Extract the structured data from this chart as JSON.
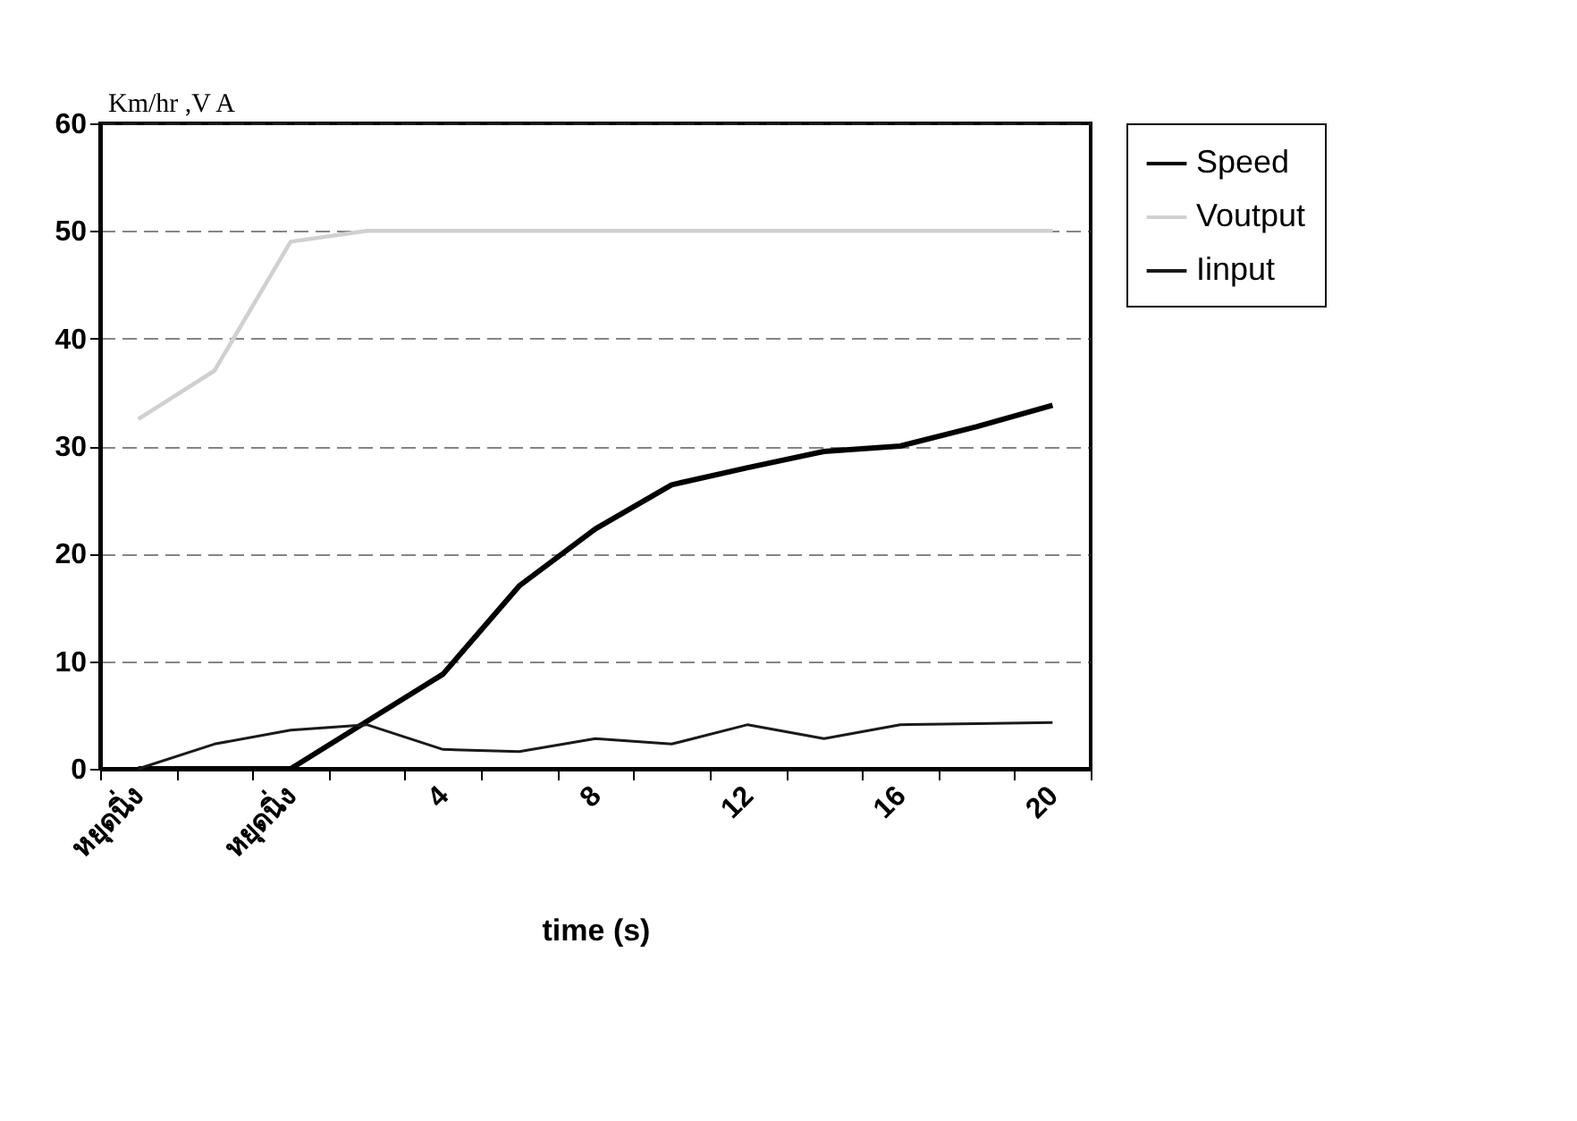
{
  "chart_data": {
    "type": "line",
    "xlabel": "time (s)",
    "ylabel": "Km/hr ,V A",
    "categories": [
      "หยุดนิ่ง",
      null,
      "หยุดนิ่ง",
      null,
      "4",
      null,
      "8",
      null,
      "12",
      null,
      "16",
      null,
      "20"
    ],
    "series": [
      {
        "name": "Speed",
        "color": "#000000",
        "values": [
          0,
          0,
          0,
          4.4,
          8.8,
          17,
          22.3,
          26.4,
          28,
          29.5,
          30,
          31.8,
          33.8
        ]
      },
      {
        "name": "Voutput",
        "color": "#d0d0d0",
        "values": [
          32.5,
          37,
          49,
          50,
          50,
          50,
          50,
          50,
          50,
          50,
          50,
          50,
          50
        ]
      },
      {
        "name": "Iinput",
        "color": "#1a1a1a",
        "values": [
          0,
          2.3,
          3.6,
          4.1,
          1.8,
          1.6,
          2.8,
          2.3,
          4.1,
          2.8,
          4.1,
          4.2,
          4.3
        ]
      }
    ],
    "ylim": [
      0,
      60
    ],
    "yticks": [
      0,
      10,
      20,
      30,
      40,
      50,
      60
    ],
    "grid": "y",
    "legend": "right",
    "line_style": "solid"
  }
}
